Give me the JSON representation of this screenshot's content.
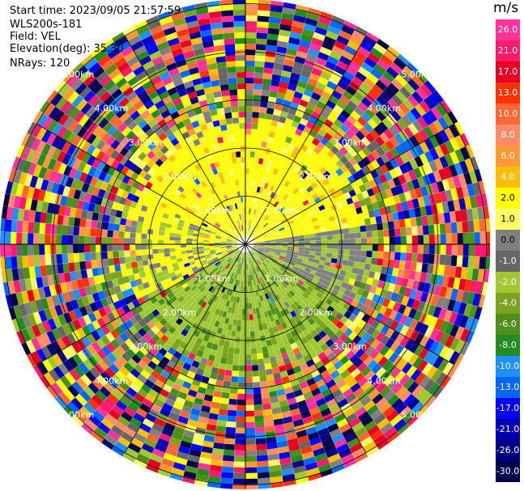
{
  "header": {
    "start_time": "Start time: 2023/09/05 21:57:59",
    "instrument": "WLS200s-181",
    "field": "Field: VEL",
    "elevation": "Elevation(deg): 35.30",
    "nrays": "NRays: 120"
  },
  "colorbar": {
    "unit": "m/s",
    "ticks": [
      "26.0",
      "21.0",
      "17.0",
      "13.0",
      "10.0",
      "8.0",
      "6.0",
      "4.0",
      "2.0",
      "1.0",
      "0.0",
      "-1.0",
      "-2.0",
      "-4.0",
      "-6.0",
      "-8.0",
      "-10.0",
      "-13.0",
      "-17.0",
      "-21.0",
      "-26.0",
      "-30.0"
    ],
    "colors": [
      "#ff3399",
      "#ff1a6e",
      "#e60026",
      "#ff3300",
      "#ff6633",
      "#ff8c66",
      "#ff9933",
      "#ffbf00",
      "#ffff00",
      "#ffff66",
      "#808080",
      "#666666",
      "#a0c832",
      "#7aa31f",
      "#4d8f1a",
      "#228b22",
      "#1e90ff",
      "#0066ff",
      "#0000ff",
      "#0000b3",
      "#000080",
      "#00004d"
    ]
  },
  "chart_data": {
    "type": "ppi",
    "field": "VEL",
    "units": "m/s",
    "nrays": 120,
    "elevation_deg": 35.3,
    "range_rings_km": [
      1,
      2,
      3,
      4,
      5
    ],
    "ring_labels": [
      "1.00km",
      "2.00km",
      "3.00km",
      "4.00km",
      "5.00km"
    ],
    "value_range": [
      -30,
      26
    ]
  }
}
